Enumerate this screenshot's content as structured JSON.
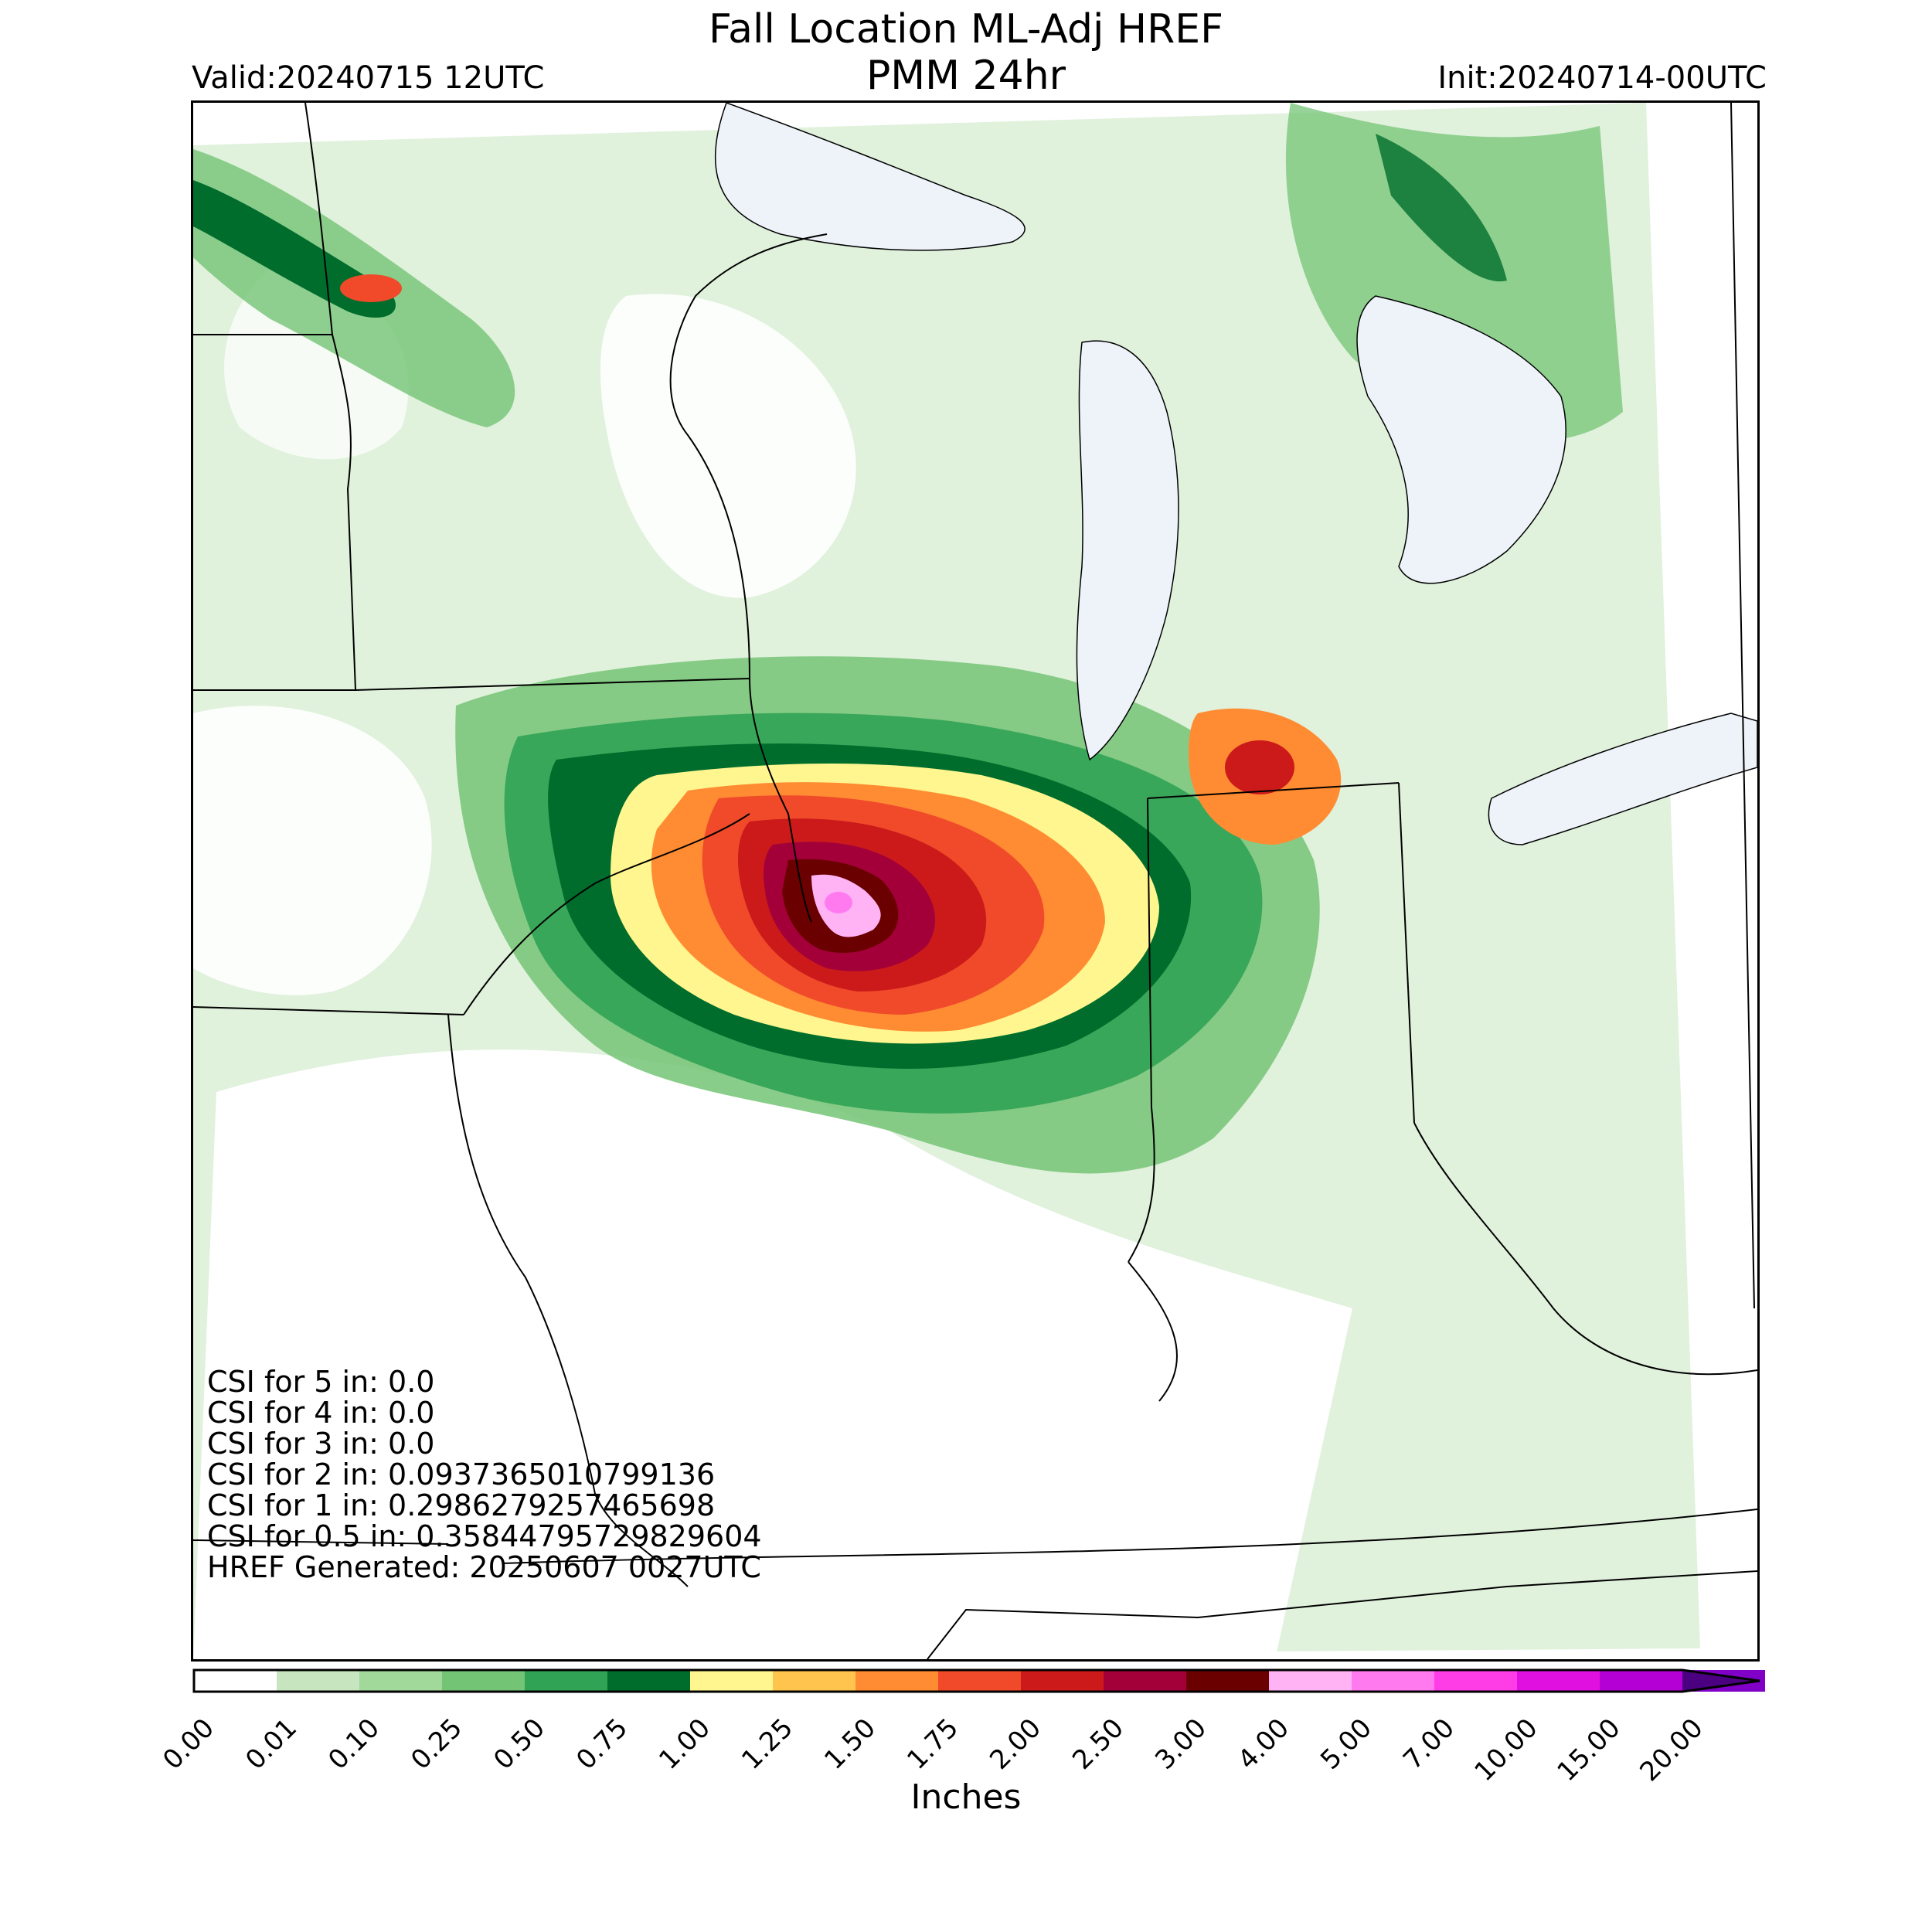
{
  "header": {
    "title_line1": "Fall Location ML-Adj HREF",
    "title_line2": "PMM 24hr",
    "valid": "Valid:20240715 12UTC",
    "init": "Init:20240714-00UTC"
  },
  "stats": [
    "CSI for 5 in: 0.0",
    "CSI for 4 in: 0.0",
    "CSI for 3 in: 0.0",
    "CSI for 2 in: 0.0937365010799136",
    "CSI for 1 in: 0.2986279257465698",
    "CSI for 0.5 in: 0.35844795729829604",
    "HREF Generated: 20250607 0027UTC"
  ],
  "colorbar": {
    "label": "Inches",
    "ticks": [
      "0.00",
      "0.01",
      "0.10",
      "0.25",
      "0.50",
      "0.75",
      "1.00",
      "1.25",
      "1.50",
      "1.75",
      "2.00",
      "2.50",
      "3.00",
      "4.00",
      "5.00",
      "7.00",
      "10.00",
      "15.00",
      "20.00"
    ],
    "colors": [
      "#ffffff",
      "#c7e6c0",
      "#a1d99b",
      "#74c476",
      "#31a354",
      "#006d2c",
      "#fff68f",
      "#ffc44d",
      "#ff8c33",
      "#f04a2a",
      "#cc1a1a",
      "#a3003a",
      "#6b0000",
      "#ffb3f5",
      "#ff7aef",
      "#ff3de6",
      "#e010e0",
      "#b400d4",
      "#8000c8"
    ],
    "extend_color": "#4b0082"
  },
  "map": {
    "lake_color": "#eef3fa",
    "border_color": "#000000"
  }
}
